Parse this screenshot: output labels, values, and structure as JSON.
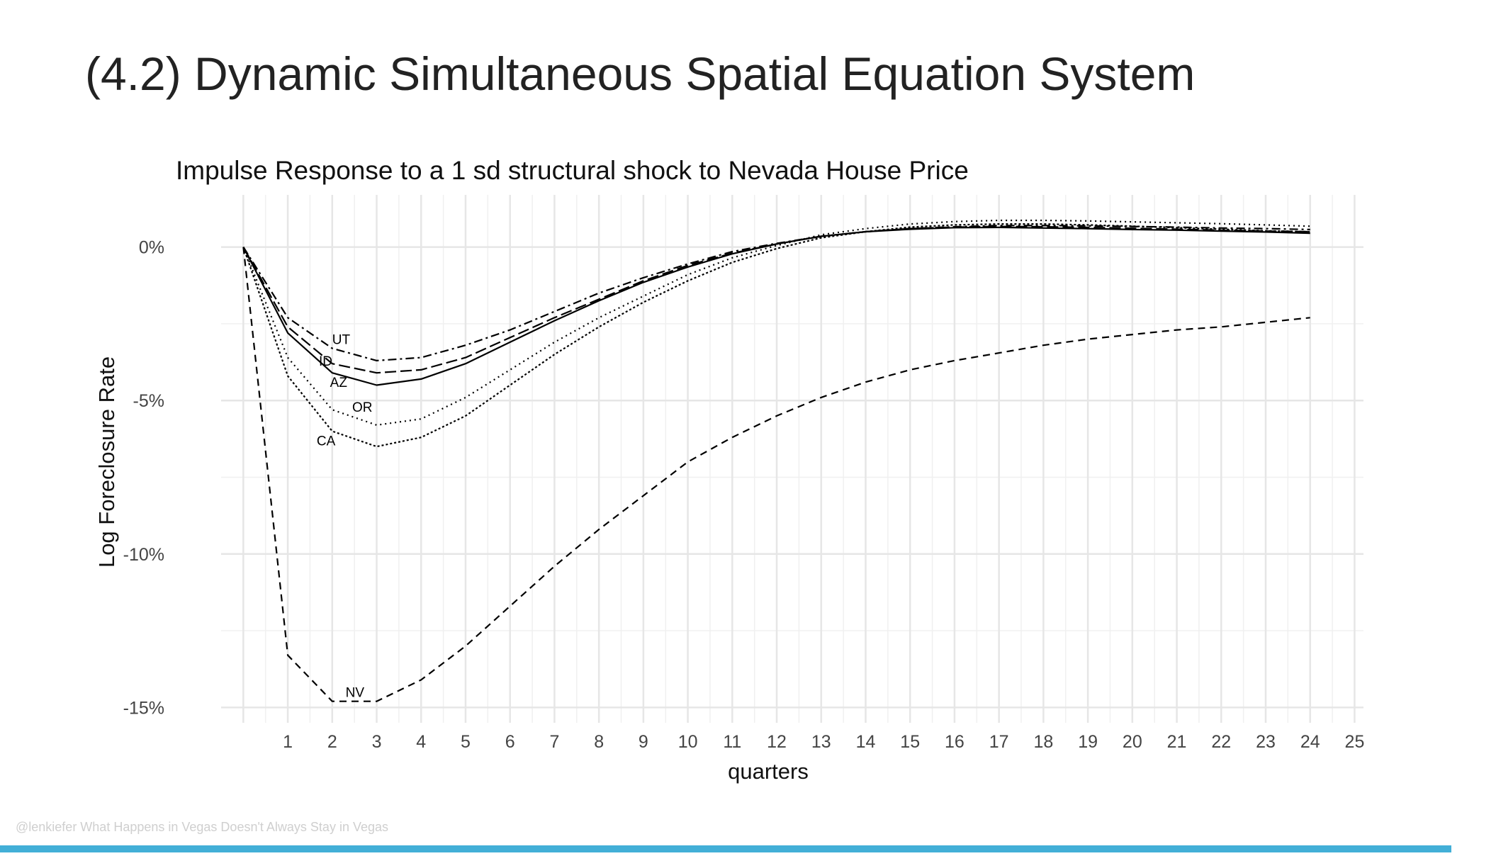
{
  "slide": {
    "title": "(4.2) Dynamic Simultaneous Spatial Equation System",
    "footer": "@lenkiefer What Happens in Vegas Doesn't Always Stay in Vegas",
    "progress_fraction": 0.97,
    "accent_color": "#42afd7"
  },
  "chart_data": {
    "type": "line",
    "title": "Impulse Response to a 1 sd structural shock to Nevada House Price",
    "xlabel": "quarters",
    "ylabel": "Log Foreclosure Rate",
    "xlim": [
      -0.5,
      25.2
    ],
    "ylim": [
      -15.5,
      1.7
    ],
    "x_ticks": [
      1,
      2,
      3,
      4,
      5,
      6,
      7,
      8,
      9,
      10,
      11,
      12,
      13,
      14,
      15,
      16,
      17,
      18,
      19,
      20,
      21,
      22,
      23,
      24,
      25
    ],
    "x_tick_labels": [
      "1",
      "2",
      "3",
      "4",
      "5",
      "6",
      "7",
      "8",
      "9",
      "10",
      "11",
      "12",
      "13",
      "14",
      "15",
      "16",
      "17",
      "18",
      "19",
      "20",
      "21",
      "22",
      "23",
      "24",
      "25"
    ],
    "y_ticks": [
      0,
      -5,
      -10,
      -15
    ],
    "y_tick_labels": [
      "0%",
      "-5%",
      "-10%",
      "-15%"
    ],
    "grid": true,
    "legend": "none",
    "x": [
      0,
      1,
      2,
      3,
      4,
      5,
      6,
      7,
      8,
      9,
      10,
      11,
      12,
      13,
      14,
      15,
      16,
      17,
      18,
      19,
      20,
      21,
      22,
      23,
      24
    ],
    "series": [
      {
        "name": "NV",
        "dash": "dashed",
        "label_x": 2.3,
        "label_y": -14.5,
        "values": [
          0,
          -13.3,
          -14.8,
          -14.8,
          -14.1,
          -13.0,
          -11.7,
          -10.4,
          -9.2,
          -8.1,
          -7.0,
          -6.2,
          -5.5,
          -4.9,
          -4.4,
          -4.0,
          -3.7,
          -3.45,
          -3.2,
          -3.0,
          -2.85,
          -2.7,
          -2.6,
          -2.45,
          -2.3
        ]
      },
      {
        "name": "CA",
        "dash": "dense-dot",
        "label_x": 1.65,
        "label_y": -6.3,
        "values": [
          0,
          -4.2,
          -6.0,
          -6.5,
          -6.2,
          -5.5,
          -4.5,
          -3.5,
          -2.6,
          -1.8,
          -1.1,
          -0.5,
          -0.05,
          0.3,
          0.5,
          0.65,
          0.72,
          0.75,
          0.75,
          0.72,
          0.68,
          0.63,
          0.58,
          0.53,
          0.5
        ]
      },
      {
        "name": "OR",
        "dash": "dotted",
        "label_x": 2.45,
        "label_y": -5.2,
        "values": [
          0,
          -3.6,
          -5.3,
          -5.8,
          -5.6,
          -4.9,
          -4.0,
          -3.1,
          -2.3,
          -1.6,
          -0.9,
          -0.35,
          0.05,
          0.4,
          0.6,
          0.75,
          0.83,
          0.87,
          0.87,
          0.85,
          0.82,
          0.79,
          0.76,
          0.72,
          0.68
        ]
      },
      {
        "name": "AZ",
        "dash": "solid",
        "label_x": 1.95,
        "label_y": -4.4,
        "values": [
          0,
          -2.8,
          -4.1,
          -4.5,
          -4.3,
          -3.8,
          -3.1,
          -2.4,
          -1.75,
          -1.15,
          -0.65,
          -0.22,
          0.1,
          0.35,
          0.5,
          0.58,
          0.63,
          0.64,
          0.62,
          0.6,
          0.57,
          0.55,
          0.52,
          0.49,
          0.45
        ]
      },
      {
        "name": "ID",
        "dash": "dash-long",
        "label_x": 1.7,
        "label_y": -3.7,
        "values": [
          0,
          -2.6,
          -3.8,
          -4.1,
          -4.0,
          -3.6,
          -2.95,
          -2.3,
          -1.7,
          -1.1,
          -0.6,
          -0.2,
          0.1,
          0.35,
          0.5,
          0.6,
          0.65,
          0.67,
          0.66,
          0.64,
          0.61,
          0.58,
          0.55,
          0.52,
          0.5
        ]
      },
      {
        "name": "UT",
        "dash": "dash-dot",
        "label_x": 2.0,
        "label_y": -3.0,
        "values": [
          0,
          -2.3,
          -3.3,
          -3.7,
          -3.6,
          -3.2,
          -2.7,
          -2.1,
          -1.5,
          -1.0,
          -0.55,
          -0.15,
          0.12,
          0.35,
          0.5,
          0.6,
          0.66,
          0.7,
          0.7,
          0.69,
          0.67,
          0.65,
          0.62,
          0.6,
          0.57
        ]
      }
    ]
  }
}
